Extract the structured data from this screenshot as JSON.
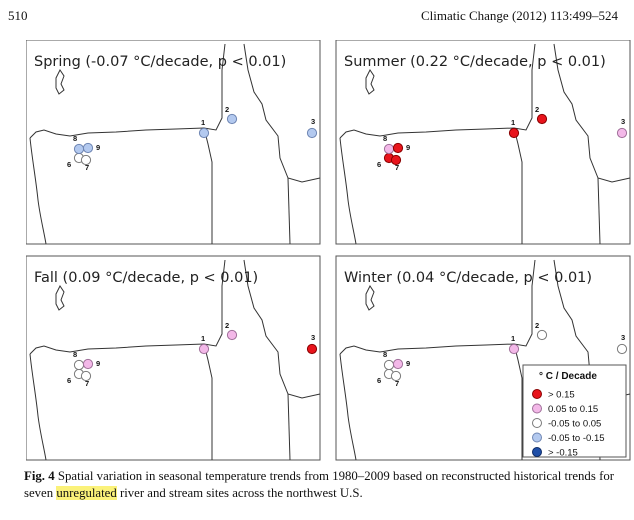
{
  "header": {
    "page_number": "510",
    "journal": "Climatic Change (2012) 113:499–524"
  },
  "panels": [
    {
      "title": "Spring (-0.07 °C/decade, p < 0.01)",
      "sites": [
        {
          "id": "1",
          "cls": "neg_small"
        },
        {
          "id": "2",
          "cls": "neg_small"
        },
        {
          "id": "3",
          "cls": "neg_small"
        },
        {
          "id": "6",
          "cls": "near_zero"
        },
        {
          "id": "7",
          "cls": "near_zero"
        },
        {
          "id": "8",
          "cls": "neg_small"
        },
        {
          "id": "9",
          "cls": "neg_small"
        }
      ]
    },
    {
      "title": "Summer (0.22 °C/decade, p < 0.01)",
      "sites": [
        {
          "id": "1",
          "cls": "gt015"
        },
        {
          "id": "2",
          "cls": "gt015"
        },
        {
          "id": "3",
          "cls": "pos_small"
        },
        {
          "id": "6",
          "cls": "gt015"
        },
        {
          "id": "7",
          "cls": "gt015"
        },
        {
          "id": "8",
          "cls": "pos_small"
        },
        {
          "id": "9",
          "cls": "gt015"
        }
      ]
    },
    {
      "title": "Fall (0.09 °C/decade, p < 0.01)",
      "sites": [
        {
          "id": "1",
          "cls": "pos_small"
        },
        {
          "id": "2",
          "cls": "pos_small"
        },
        {
          "id": "3",
          "cls": "gt015"
        },
        {
          "id": "6",
          "cls": "near_zero"
        },
        {
          "id": "7",
          "cls": "near_zero"
        },
        {
          "id": "8",
          "cls": "near_zero"
        },
        {
          "id": "9",
          "cls": "pos_small"
        }
      ]
    },
    {
      "title": "Winter (0.04 °C/decade, p < 0.01)",
      "sites": [
        {
          "id": "1",
          "cls": "pos_small"
        },
        {
          "id": "2",
          "cls": "near_zero"
        },
        {
          "id": "3",
          "cls": "near_zero"
        },
        {
          "id": "6",
          "cls": "near_zero"
        },
        {
          "id": "7",
          "cls": "near_zero"
        },
        {
          "id": "8",
          "cls": "near_zero"
        },
        {
          "id": "9",
          "cls": "pos_small"
        }
      ]
    }
  ],
  "legend": {
    "title": "° C / Decade",
    "items": [
      {
        "key": "gt015",
        "label": "> 0.15",
        "color": "#e8141c",
        "stroke": "#8a0000"
      },
      {
        "key": "pos_small",
        "label": "0.05 to 0.15",
        "color": "#f3b8e8",
        "stroke": "#a0709a"
      },
      {
        "key": "near_zero",
        "label": "-0.05 to 0.05",
        "color": "#ffffff",
        "stroke": "#7a7a7a"
      },
      {
        "key": "neg_small",
        "label": "-0.05 to -0.15",
        "color": "#b3c9ef",
        "stroke": "#6f86b3"
      },
      {
        "key": "neg_large",
        "label": "> -0.15",
        "color": "#1f4fa8",
        "stroke": "#0d2a66"
      }
    ]
  },
  "caption": {
    "fig_label": "Fig. 4",
    "text_before": " Spatial variation in seasonal temperature trends from 1980–2009 based on reconstructed historical trends for seven ",
    "highlight": "unregulated",
    "text_after": " river and stream sites across the northwest U.S."
  }
}
